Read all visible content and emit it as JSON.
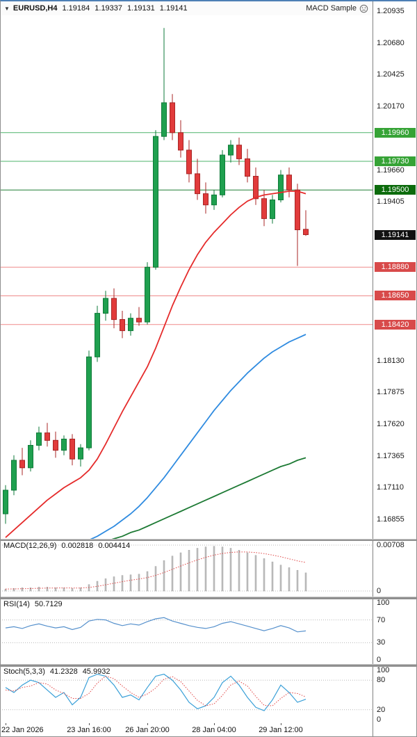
{
  "header": {
    "symbol_period": "EURUSD,H4",
    "ohlc": [
      "1.19184",
      "1.19337",
      "1.19131",
      "1.19141"
    ],
    "ea_label": "MACD Sample"
  },
  "colors": {
    "bull": "#1fa04f",
    "bull_border": "#0e7a38",
    "bear": "#e13b3b",
    "bear_border": "#a82525",
    "macd_bar": "#bfbfbf",
    "macd_bar_border": "#a6a6a6",
    "macd_signal": "#e04545",
    "rsi_line": "#5590cc",
    "stoch_main": "#3aa0d8",
    "stoch_signal": "#e04545",
    "grid_dotted": "#b8b8b8",
    "current_badge": "#111111"
  },
  "chart_data": {
    "type": "candlestick",
    "symbol": "EURUSD",
    "timeframe": "H4",
    "price_axis": {
      "ticks": [
        "1.20935",
        "1.20680",
        "1.20425",
        "1.20170",
        "1.19660",
        "1.19405",
        "1.18130",
        "1.17875",
        "1.17620",
        "1.17365",
        "1.17110",
        "1.16855"
      ],
      "tick_step": 0.00255
    },
    "levels": [
      {
        "price": 1.1996,
        "label": "1.19960",
        "line_color": "#4db36b",
        "badge_color": "#36a336"
      },
      {
        "price": 1.1973,
        "label": "1.19730",
        "line_color": "#4db36b",
        "badge_color": "#36a336"
      },
      {
        "price": 1.195,
        "label": "1.19500",
        "line_color": "#1e7e34",
        "badge_color": "#0c6b0c"
      },
      {
        "price": 1.1888,
        "label": "1.18880",
        "line_color": "#ef8a8a",
        "badge_color": "#d84a4a"
      },
      {
        "price": 1.1865,
        "label": "1.18650",
        "line_color": "#ef8a8a",
        "badge_color": "#d84a4a"
      },
      {
        "price": 1.1842,
        "label": "1.18420",
        "line_color": "#ef8a8a",
        "badge_color": "#d84a4a"
      }
    ],
    "current_price": {
      "label": "1.19141",
      "price": 1.19141
    },
    "candles": [
      [
        1.169,
        1.1713,
        1.1682,
        1.1709
      ],
      [
        1.1709,
        1.1737,
        1.1705,
        1.1733
      ],
      [
        1.1733,
        1.1743,
        1.1721,
        1.1727
      ],
      [
        1.1727,
        1.1749,
        1.1724,
        1.1745
      ],
      [
        1.1745,
        1.176,
        1.1741,
        1.1755
      ],
      [
        1.1755,
        1.1763,
        1.1744,
        1.1749
      ],
      [
        1.1749,
        1.1756,
        1.1735,
        1.1741
      ],
      [
        1.1741,
        1.1753,
        1.1737,
        1.175
      ],
      [
        1.175,
        1.1754,
        1.1729,
        1.1734
      ],
      [
        1.1734,
        1.1746,
        1.1728,
        1.1743
      ],
      [
        1.1743,
        1.1821,
        1.1741,
        1.1816
      ],
      [
        1.1816,
        1.1857,
        1.1812,
        1.1851
      ],
      [
        1.1851,
        1.1869,
        1.1845,
        1.1863
      ],
      [
        1.1863,
        1.1871,
        1.1839,
        1.1846
      ],
      [
        1.1846,
        1.1853,
        1.1831,
        1.1837
      ],
      [
        1.1837,
        1.1851,
        1.1833,
        1.1847
      ],
      [
        1.1847,
        1.1856,
        1.1841,
        1.1844
      ],
      [
        1.1844,
        1.1892,
        1.1842,
        1.1888
      ],
      [
        1.1888,
        1.1998,
        1.1886,
        1.1993
      ],
      [
        1.1993,
        1.208,
        1.199,
        1.202
      ],
      [
        1.202,
        1.2027,
        1.199,
        1.1996
      ],
      [
        1.1996,
        1.2006,
        1.1976,
        1.1982
      ],
      [
        1.1982,
        1.199,
        1.1956,
        1.1963
      ],
      [
        1.1963,
        1.1975,
        1.1942,
        1.1947
      ],
      [
        1.1947,
        1.1956,
        1.1931,
        1.1938
      ],
      [
        1.1938,
        1.195,
        1.1934,
        1.1946
      ],
      [
        1.1946,
        1.1982,
        1.1944,
        1.1978
      ],
      [
        1.1978,
        1.199,
        1.1972,
        1.1986
      ],
      [
        1.1986,
        1.1992,
        1.197,
        1.1975
      ],
      [
        1.1975,
        1.1983,
        1.1956,
        1.1961
      ],
      [
        1.1961,
        1.1968,
        1.1938,
        1.1943
      ],
      [
        1.1943,
        1.195,
        1.1921,
        1.1927
      ],
      [
        1.1927,
        1.1946,
        1.1923,
        1.1942
      ],
      [
        1.1942,
        1.1966,
        1.194,
        1.1962
      ],
      [
        1.1962,
        1.1968,
        1.1944,
        1.195
      ],
      [
        1.195,
        1.1955,
        1.1889,
        1.1918
      ],
      [
        1.19184,
        1.19337,
        1.19131,
        1.19141
      ]
    ],
    "moving_averages": [
      {
        "name": "ma-fast-red",
        "color": "#e52b2b",
        "values": [
          1.1671,
          1.1677,
          1.1683,
          1.1689,
          1.1695,
          1.1701,
          1.1706,
          1.1711,
          1.1715,
          1.1719,
          1.1725,
          1.1734,
          1.1746,
          1.1759,
          1.1772,
          1.1784,
          1.1796,
          1.1808,
          1.1823,
          1.184,
          1.1857,
          1.1872,
          1.1886,
          1.1898,
          1.1908,
          1.1916,
          1.1923,
          1.193,
          1.1936,
          1.1941,
          1.1944,
          1.1946,
          1.1947,
          1.1948,
          1.1949,
          1.1949,
          1.1947
        ]
      },
      {
        "name": "ma-mid-blue",
        "color": "#2f8be0",
        "values": [
          null,
          null,
          null,
          null,
          null,
          null,
          null,
          null,
          null,
          1.1666,
          1.1669,
          1.1672,
          1.1676,
          1.168,
          1.1685,
          1.169,
          1.1696,
          1.1703,
          1.1711,
          1.1719,
          1.1728,
          1.1737,
          1.1746,
          1.1755,
          1.1764,
          1.1773,
          1.1781,
          1.1789,
          1.1796,
          1.1803,
          1.1809,
          1.1815,
          1.182,
          1.1824,
          1.1828,
          1.1831,
          1.1834
        ]
      },
      {
        "name": "ma-slow-green",
        "color": "#1d7a34",
        "values": [
          null,
          null,
          null,
          null,
          null,
          null,
          null,
          null,
          null,
          null,
          null,
          1.1666,
          1.1668,
          1.167,
          1.1672,
          1.1675,
          1.1677,
          1.168,
          1.1683,
          1.1686,
          1.1689,
          1.1692,
          1.1695,
          1.1698,
          1.1701,
          1.1704,
          1.1707,
          1.171,
          1.1713,
          1.1716,
          1.1719,
          1.1722,
          1.1725,
          1.1728,
          1.173,
          1.1733,
          1.1735
        ]
      }
    ],
    "indicators": {
      "macd": {
        "title": "MACD(12,26,9)",
        "values": [
          "0.002818",
          "0.004414"
        ],
        "scale_labels": [
          "0.00708",
          "0"
        ],
        "histogram": [
          0.0003,
          0.0004,
          0.0005,
          0.0005,
          0.0006,
          0.0006,
          0.0005,
          0.0005,
          0.0004,
          0.0005,
          0.001,
          0.0015,
          0.0019,
          0.0022,
          0.0024,
          0.0025,
          0.0026,
          0.003,
          0.0038,
          0.0047,
          0.0054,
          0.0059,
          0.0063,
          0.0066,
          0.0068,
          0.0069,
          0.0068,
          0.0066,
          0.0063,
          0.0059,
          0.0055,
          0.005,
          0.0045,
          0.004,
          0.0036,
          0.0032,
          0.0028
        ],
        "signal": [
          0.0003,
          0.00032,
          0.00035,
          0.00038,
          0.00042,
          0.00045,
          0.00046,
          0.00047,
          0.00046,
          0.00046,
          0.00055,
          0.00072,
          0.00095,
          0.0012,
          0.00144,
          0.00166,
          0.00185,
          0.00207,
          0.00241,
          0.00285,
          0.00335,
          0.00385,
          0.00434,
          0.00479,
          0.00519,
          0.00553,
          0.00579,
          0.00595,
          0.00603,
          0.00602,
          0.00593,
          0.00577,
          0.00555,
          0.00528,
          0.00497,
          0.00465,
          0.004414
        ]
      },
      "rsi": {
        "title": "RSI(14)",
        "values": [
          "50.7129"
        ],
        "scale_labels": [
          "100",
          "70",
          "30",
          "0"
        ],
        "levels": [
          70,
          30
        ],
        "line": [
          56,
          58,
          55,
          60,
          63,
          59,
          56,
          58,
          53,
          57,
          68,
          71,
          70,
          64,
          60,
          63,
          61,
          67,
          72,
          74,
          68,
          64,
          60,
          57,
          55,
          58,
          64,
          67,
          63,
          59,
          55,
          51,
          55,
          60,
          56,
          49,
          50.7
        ]
      },
      "stoch": {
        "title": "Stoch(5,3,3)",
        "values": [
          "41.2328",
          "45.9932"
        ],
        "scale_labels": [
          "100",
          "80",
          "20",
          "0"
        ],
        "levels": [
          80,
          20
        ],
        "k": [
          65,
          55,
          70,
          80,
          75,
          60,
          45,
          55,
          30,
          45,
          85,
          92,
          88,
          70,
          45,
          50,
          40,
          65,
          88,
          92,
          80,
          60,
          35,
          22,
          28,
          45,
          75,
          88,
          70,
          45,
          25,
          18,
          40,
          70,
          55,
          35,
          41.23
        ],
        "d": [
          60,
          58,
          65,
          68,
          75,
          72,
          60,
          53,
          43,
          43,
          53,
          74,
          88,
          83,
          68,
          55,
          45,
          52,
          64,
          82,
          87,
          77,
          58,
          39,
          28,
          32,
          49,
          70,
          78,
          68,
          47,
          29,
          28,
          43,
          55,
          53,
          45.99
        ]
      }
    },
    "time_labels": [
      {
        "text": "22 Jan 2026",
        "index": 0
      },
      {
        "text": "23 Jan 16:00",
        "index": 10
      },
      {
        "text": "26 Jan 20:00",
        "index": 17
      },
      {
        "text": "28 Jan 04:00",
        "index": 25
      },
      {
        "text": "29 Jan 12:00",
        "index": 33
      }
    ]
  }
}
